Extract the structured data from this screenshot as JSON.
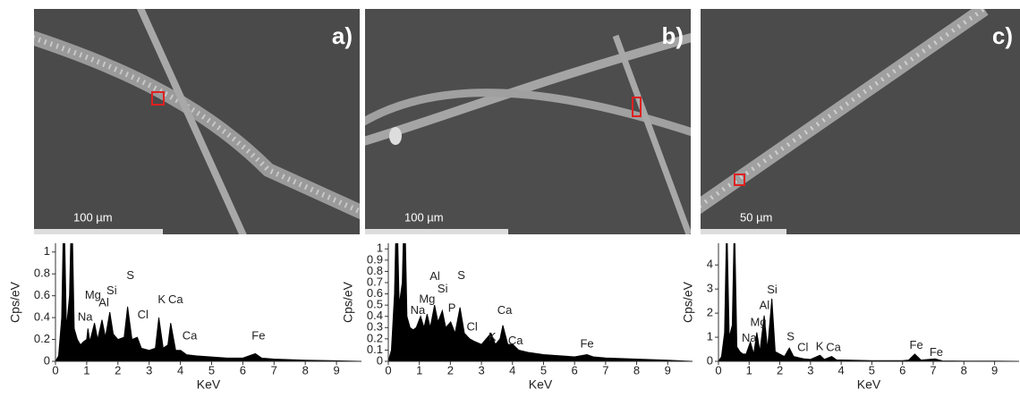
{
  "panels": [
    {
      "label": "a)",
      "scale_bar": "100 µm"
    },
    {
      "label": "b)",
      "scale_bar": "100 µm"
    },
    {
      "label": "c)",
      "scale_bar": "50 µm"
    }
  ],
  "chart_data": [
    {
      "type": "area",
      "xlabel": "KeV",
      "ylabel": "Cps/eV",
      "color": "#000000",
      "xlim": [
        0,
        9.8
      ],
      "xticks": [
        0,
        1,
        2,
        3,
        4,
        5,
        6,
        7,
        8,
        9
      ],
      "ylim": [
        0,
        1.08
      ],
      "yticks": [
        0,
        0.2,
        0.4,
        0.6,
        0.8,
        1
      ],
      "x": [
        0,
        0.1,
        0.2,
        0.27,
        0.35,
        0.45,
        0.52,
        0.6,
        0.7,
        0.8,
        0.9,
        1.0,
        1.04,
        1.1,
        1.25,
        1.35,
        1.49,
        1.6,
        1.74,
        1.85,
        2.0,
        2.2,
        2.31,
        2.45,
        2.62,
        2.75,
        3.0,
        3.2,
        3.31,
        3.45,
        3.6,
        3.69,
        3.85,
        4.01,
        4.2,
        4.5,
        5,
        5.5,
        6,
        6.4,
        6.6,
        7,
        8,
        9,
        9.8
      ],
      "values": [
        0,
        0.05,
        0.4,
        1.5,
        0.3,
        0.6,
        1.5,
        0.3,
        0.2,
        0.15,
        0.18,
        0.2,
        0.3,
        0.18,
        0.35,
        0.2,
        0.38,
        0.22,
        0.45,
        0.25,
        0.2,
        0.22,
        0.5,
        0.2,
        0.22,
        0.12,
        0.1,
        0.12,
        0.4,
        0.12,
        0.15,
        0.35,
        0.1,
        0.1,
        0.06,
        0.05,
        0.04,
        0.03,
        0.03,
        0.07,
        0.03,
        0.02,
        0.01,
        0.005,
        0
      ],
      "annotations": [
        {
          "label": "Mg",
          "x": 1.2,
          "y": 0.6
        },
        {
          "label": "Na",
          "x": 0.95,
          "y": 0.4
        },
        {
          "label": "Al",
          "x": 1.55,
          "y": 0.53
        },
        {
          "label": "Si",
          "x": 1.8,
          "y": 0.64
        },
        {
          "label": "S",
          "x": 2.4,
          "y": 0.78
        },
        {
          "label": "Cl",
          "x": 2.8,
          "y": 0.42
        },
        {
          "label": "K",
          "x": 3.4,
          "y": 0.56
        },
        {
          "label": "Ca",
          "x": 3.85,
          "y": 0.56
        },
        {
          "label": "Ca",
          "x": 4.3,
          "y": 0.23
        },
        {
          "label": "Fe",
          "x": 6.5,
          "y": 0.23
        }
      ]
    },
    {
      "type": "area",
      "xlabel": "KeV",
      "ylabel": "Cps/eV",
      "color": "#000000",
      "xlim": [
        0,
        9.8
      ],
      "xticks": [
        0,
        1,
        2,
        3,
        4,
        5,
        6,
        7,
        8,
        9
      ],
      "ylim": [
        0,
        1.05
      ],
      "yticks": [
        0,
        0.1,
        0.2,
        0.3,
        0.4,
        0.5,
        0.6,
        0.7,
        0.8,
        0.9,
        1
      ],
      "x": [
        0,
        0.1,
        0.2,
        0.27,
        0.35,
        0.45,
        0.52,
        0.6,
        0.7,
        0.8,
        0.9,
        1.04,
        1.15,
        1.25,
        1.35,
        1.49,
        1.6,
        1.74,
        1.85,
        2.01,
        2.15,
        2.31,
        2.45,
        2.62,
        2.75,
        3.0,
        3.31,
        3.45,
        3.6,
        3.69,
        3.85,
        4.01,
        4.2,
        4.5,
        5,
        5.5,
        6,
        6.4,
        6.6,
        7,
        8,
        9,
        9.8
      ],
      "values": [
        0,
        0.1,
        0.6,
        1.5,
        0.5,
        0.7,
        1.5,
        0.4,
        0.3,
        0.28,
        0.3,
        0.4,
        0.3,
        0.42,
        0.3,
        0.5,
        0.35,
        0.45,
        0.3,
        0.35,
        0.25,
        0.48,
        0.25,
        0.2,
        0.18,
        0.15,
        0.25,
        0.15,
        0.2,
        0.32,
        0.15,
        0.15,
        0.1,
        0.08,
        0.06,
        0.05,
        0.04,
        0.06,
        0.04,
        0.03,
        0.02,
        0.01,
        0
      ],
      "annotations": [
        {
          "label": "Na",
          "x": 0.95,
          "y": 0.45
        },
        {
          "label": "Mg",
          "x": 1.25,
          "y": 0.55
        },
        {
          "label": "Al",
          "x": 1.5,
          "y": 0.75
        },
        {
          "label": "Si",
          "x": 1.75,
          "y": 0.64
        },
        {
          "label": "P",
          "x": 2.05,
          "y": 0.47
        },
        {
          "label": "S",
          "x": 2.35,
          "y": 0.76
        },
        {
          "label": "Cl",
          "x": 2.7,
          "y": 0.3
        },
        {
          "label": "K",
          "x": 3.35,
          "y": 0.21
        },
        {
          "label": "Ca",
          "x": 3.75,
          "y": 0.45
        },
        {
          "label": "Ca",
          "x": 4.1,
          "y": 0.18
        },
        {
          "label": "Fe",
          "x": 6.4,
          "y": 0.15
        }
      ]
    },
    {
      "type": "area",
      "xlabel": "KeV",
      "ylabel": "Cps/eV",
      "color": "#000000",
      "xlim": [
        0,
        9.8
      ],
      "xticks": [
        0,
        1,
        2,
        3,
        4,
        5,
        6,
        7,
        8,
        9
      ],
      "ylim": [
        0,
        4.9
      ],
      "yticks": [
        0,
        1,
        2,
        3,
        4
      ],
      "x": [
        0,
        0.1,
        0.2,
        0.27,
        0.35,
        0.45,
        0.52,
        0.6,
        0.7,
        0.8,
        0.9,
        1.04,
        1.15,
        1.25,
        1.35,
        1.49,
        1.6,
        1.74,
        1.85,
        2.0,
        2.15,
        2.31,
        2.45,
        2.62,
        2.8,
        3.0,
        3.31,
        3.45,
        3.69,
        3.85,
        4.2,
        5,
        6,
        6.2,
        6.4,
        6.6,
        7.06,
        7.3,
        8,
        9,
        9.8
      ],
      "values": [
        0,
        0.2,
        1.2,
        6,
        1.0,
        1.5,
        6,
        0.6,
        0.4,
        0.3,
        0.3,
        0.8,
        0.3,
        1.2,
        0.4,
        1.9,
        0.5,
        2.6,
        0.4,
        0.3,
        0.2,
        0.55,
        0.2,
        0.15,
        0.1,
        0.08,
        0.25,
        0.08,
        0.2,
        0.06,
        0.05,
        0.03,
        0.03,
        0.05,
        0.3,
        0.05,
        0.1,
        0.02,
        0.01,
        0.01,
        0
      ],
      "annotations": [
        {
          "label": "Na",
          "x": 1.0,
          "y": 0.95
        },
        {
          "label": "Mg",
          "x": 1.3,
          "y": 1.6
        },
        {
          "label": "Al",
          "x": 1.5,
          "y": 2.3
        },
        {
          "label": "Si",
          "x": 1.75,
          "y": 2.95
        },
        {
          "label": "S",
          "x": 2.35,
          "y": 1.0
        },
        {
          "label": "Cl",
          "x": 2.75,
          "y": 0.55
        },
        {
          "label": "K",
          "x": 3.3,
          "y": 0.6
        },
        {
          "label": "Ca",
          "x": 3.75,
          "y": 0.55
        },
        {
          "label": "Fe",
          "x": 6.45,
          "y": 0.65
        },
        {
          "label": "Fe",
          "x": 7.1,
          "y": 0.35
        }
      ]
    }
  ]
}
